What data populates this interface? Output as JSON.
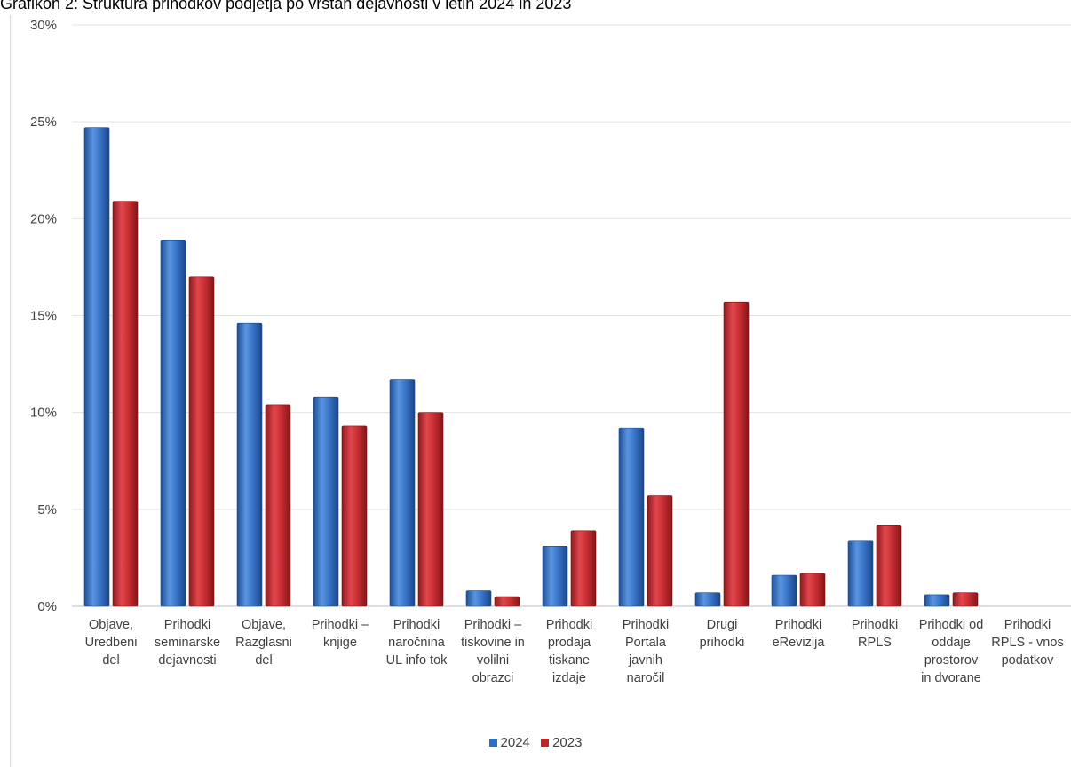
{
  "chart_data": {
    "type": "bar",
    "title": "Grafikon 2: Struktura prihodkov podjetja po vrstah dejavnosti v letih 2024 in 2023",
    "categories": [
      [
        "Objave,",
        "Uredbeni",
        "del"
      ],
      [
        "Prihodki",
        "seminarske",
        "dejavnosti"
      ],
      [
        "Objave,",
        "Razglasni",
        "del"
      ],
      [
        "Prihodki –",
        "knjige"
      ],
      [
        "Prihodki",
        "naročnina",
        "UL info tok"
      ],
      [
        "Prihodki –",
        "tiskovine in",
        "volilni",
        "obrazci"
      ],
      [
        "Prihodki",
        "prodaja",
        "tiskane",
        "izdaje"
      ],
      [
        "Prihodki",
        "Portala",
        "javnih",
        "naročil"
      ],
      [
        "Drugi",
        "prihodki"
      ],
      [
        "Prihodki",
        "eRevizija"
      ],
      [
        "Prihodki",
        "RPLS"
      ],
      [
        "Prihodki od",
        "oddaje",
        "prostorov",
        "in dvorane"
      ],
      [
        "Prihodki",
        "RPLS - vnos",
        "podatkov"
      ]
    ],
    "series": [
      {
        "name": "2024",
        "color": "#2e6fc4",
        "values": [
          24.7,
          18.9,
          14.6,
          10.8,
          11.7,
          0.8,
          3.1,
          9.2,
          0.7,
          1.6,
          3.4,
          0.6,
          0.0
        ]
      },
      {
        "name": "2023",
        "color": "#c0272d",
        "values": [
          20.9,
          17.0,
          10.4,
          9.3,
          10.0,
          0.5,
          3.9,
          5.7,
          15.7,
          1.7,
          4.2,
          0.7,
          0.0
        ]
      }
    ],
    "yticks": [
      "0%",
      "5%",
      "10%",
      "15%",
      "20%",
      "25%",
      "30%"
    ],
    "ylim": [
      0,
      30
    ],
    "grid": true,
    "legend_position": "bottom"
  }
}
